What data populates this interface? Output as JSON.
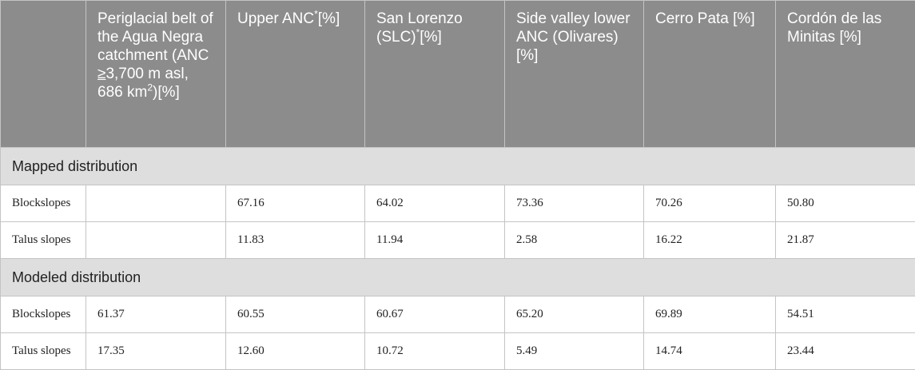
{
  "header": {
    "columns": [
      null,
      {
        "parts": [
          "Periglacial belt of the Agua Negra catchment (ANC ",
          "≥",
          "3,700 m asl, 686 km",
          "2",
          ")[%]"
        ]
      },
      {
        "parts": [
          "Upper ANC",
          "*",
          "[%]"
        ]
      },
      {
        "parts": [
          "San Lorenzo (SLC)",
          "*",
          "[%]"
        ]
      },
      {
        "parts": [
          "Side valley lower ANC (Olivares) [%]"
        ]
      },
      {
        "parts": [
          "Cerro Pata [%]"
        ]
      },
      {
        "parts": [
          "Cordón de las Minitas [%]"
        ]
      }
    ]
  },
  "sections": [
    {
      "title": "Mapped distribution",
      "rows": [
        [
          "Blockslopes",
          null,
          "67.16",
          "64.02",
          "73.36",
          "70.26",
          "50.80"
        ],
        [
          "Talus slopes",
          null,
          "11.83",
          "11.94",
          "2.58",
          "16.22",
          "21.87"
        ]
      ]
    },
    {
      "title": "Modeled distribution",
      "rows": [
        [
          "Blockslopes",
          "61.37",
          "60.55",
          "60.67",
          "65.20",
          "69.89",
          "54.51"
        ],
        [
          "Talus slopes",
          "17.35",
          "12.60",
          "10.72",
          "5.49",
          "14.74",
          "23.44"
        ]
      ]
    }
  ]
}
